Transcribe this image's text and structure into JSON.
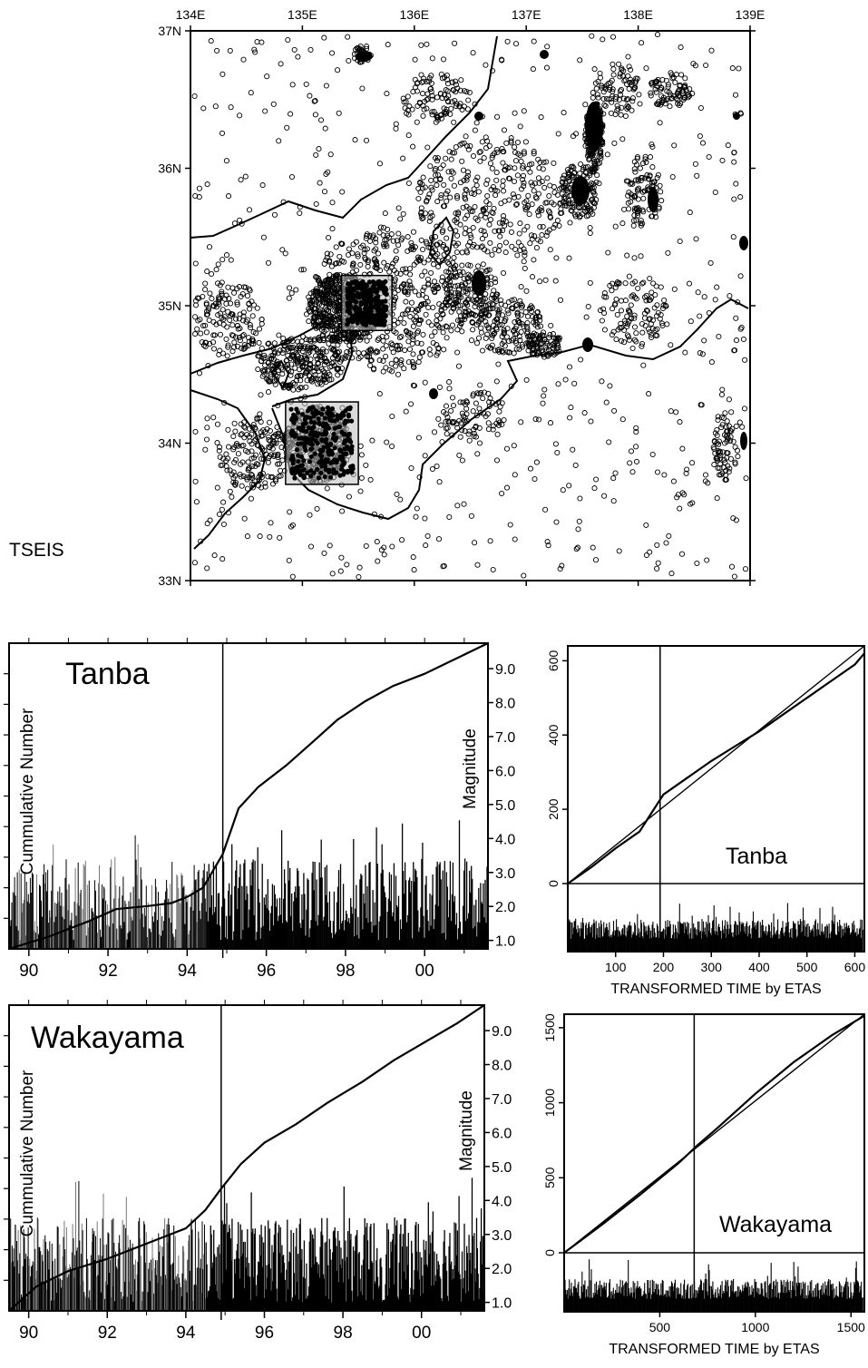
{
  "map": {
    "label": "TSEIS",
    "lon_ticks": [
      "134E",
      "135E",
      "136E",
      "137E",
      "138E",
      "139E"
    ],
    "lat_ticks": [
      "37N",
      "36N",
      "35N",
      "34N",
      "33N"
    ],
    "lon_range": [
      134,
      139
    ],
    "lat_range": [
      33,
      37
    ],
    "boxes": [
      {
        "name": "tanba-region",
        "lon": [
          135.35,
          135.8
        ],
        "lat": [
          34.82,
          35.22
        ]
      },
      {
        "name": "wakayama-region",
        "lon": [
          134.85,
          135.5
        ],
        "lat": [
          33.7,
          34.3
        ]
      }
    ]
  },
  "chart_data": [
    {
      "type": "line",
      "panel": "tanba-time-series",
      "title": "Tanba",
      "ylabel_left": "Cummulative Number",
      "ylabel_right": "Magnitude",
      "x_ticks": [
        "90",
        "92",
        "94",
        "96",
        "98",
        "00"
      ],
      "x_tick_values": [
        1990,
        1992,
        1994,
        1996,
        1998,
        2000
      ],
      "xlim": [
        1989.5,
        2001.6
      ],
      "magnitude_ticks": [
        "9.0",
        "8.0",
        "7.0",
        "6.0",
        "5.0",
        "4.0",
        "3.0",
        "2.0",
        "1.0"
      ],
      "magnitude_range": [
        0.75,
        9.75
      ],
      "event_marker_x": 1994.9,
      "cumulative_curve": {
        "x": [
          1989.5,
          1990.5,
          1991.5,
          1992.2,
          1993.0,
          1993.6,
          1994.0,
          1994.4,
          1994.9,
          1995.3,
          1995.8,
          1996.5,
          1997.2,
          1997.8,
          1998.5,
          1999.2,
          2000.0,
          2000.8,
          2001.6
        ],
        "y_fraction": [
          0.0,
          0.04,
          0.09,
          0.13,
          0.14,
          0.15,
          0.17,
          0.2,
          0.31,
          0.46,
          0.53,
          0.6,
          0.68,
          0.75,
          0.81,
          0.86,
          0.9,
          0.95,
          1.0
        ]
      },
      "magnitude_bar_range": [
        1.0,
        3.4
      ]
    },
    {
      "type": "line",
      "panel": "tanba-etas",
      "title": "Tanba",
      "xlabel": "TRANSFORMED TIME by ETAS",
      "x_ticks": [
        "100",
        "200",
        "300",
        "400",
        "500",
        "600"
      ],
      "y_ticks": [
        "0",
        "200",
        "400",
        "600"
      ],
      "xlim": [
        0,
        620
      ],
      "ylim": [
        0,
        640
      ],
      "event_marker_x": 193,
      "diagonal": true,
      "observed_curve": {
        "x": [
          0,
          50,
          100,
          150,
          180,
          200,
          250,
          300,
          350,
          400,
          450,
          500,
          550,
          600,
          620
        ],
        "y": [
          0,
          45,
          95,
          140,
          200,
          240,
          285,
          330,
          370,
          410,
          455,
          500,
          545,
          590,
          620
        ]
      }
    },
    {
      "type": "line",
      "panel": "wakayama-time-series",
      "title": "Wakayama",
      "ylabel_left": "Cummulative Number",
      "ylabel_right": "Magnitude",
      "x_ticks": [
        "90",
        "92",
        "94",
        "96",
        "98",
        "00"
      ],
      "x_tick_values": [
        1990,
        1992,
        1994,
        1996,
        1998,
        2000
      ],
      "xlim": [
        1989.5,
        2001.6
      ],
      "magnitude_ticks": [
        "9.0",
        "8.0",
        "7.0",
        "6.0",
        "5.0",
        "4.0",
        "3.0",
        "2.0",
        "1.0"
      ],
      "magnitude_range": [
        0.75,
        9.75
      ],
      "event_marker_x": 1994.9,
      "cumulative_curve": {
        "x": [
          1989.5,
          1990.2,
          1991.0,
          1992.0,
          1993.0,
          1994.0,
          1994.5,
          1994.9,
          1995.4,
          1996.0,
          1996.8,
          1997.6,
          1998.5,
          1999.3,
          2000.1,
          2000.9,
          2001.6
        ],
        "y_fraction": [
          0.0,
          0.08,
          0.13,
          0.17,
          0.22,
          0.27,
          0.33,
          0.4,
          0.48,
          0.55,
          0.61,
          0.68,
          0.75,
          0.82,
          0.88,
          0.94,
          1.0
        ]
      },
      "magnitude_bar_range": [
        1.0,
        3.5
      ]
    },
    {
      "type": "line",
      "panel": "wakayama-etas",
      "title": "Wakayama",
      "xlabel": "TRANSFORMED TIME by ETAS",
      "x_ticks": [
        "500",
        "1000",
        "1500"
      ],
      "y_ticks": [
        "0",
        "500",
        "1000",
        "1500"
      ],
      "xlim": [
        0,
        1570
      ],
      "ylim": [
        0,
        1590
      ],
      "event_marker_x": 680,
      "diagonal": true,
      "observed_curve": {
        "x": [
          0,
          200,
          400,
          600,
          700,
          800,
          1000,
          1200,
          1400,
          1570
        ],
        "y": [
          0,
          190,
          390,
          600,
          720,
          830,
          1060,
          1270,
          1450,
          1580
        ]
      }
    }
  ]
}
